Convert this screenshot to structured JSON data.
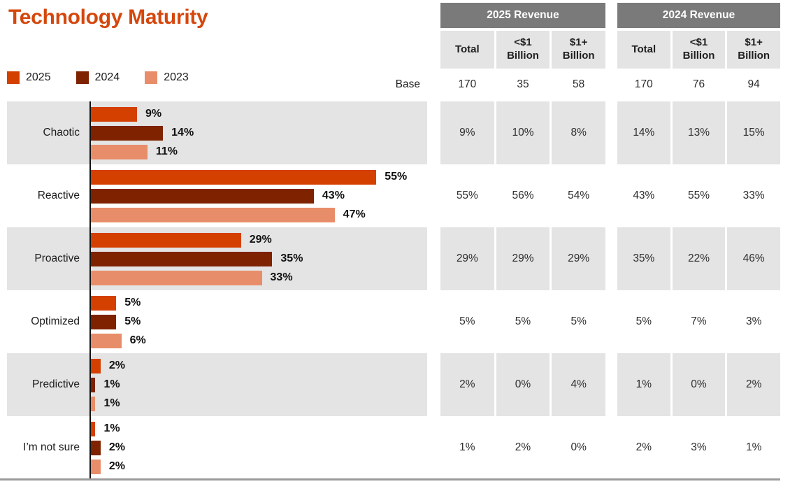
{
  "title": "Technology Maturity",
  "accent_color": "#D5470D",
  "base_label": "Base",
  "colors": {
    "band_gray": "#E4E4E4",
    "table_header_gray": "#7A7A7A",
    "bottom_line": "#9B9B9B",
    "series_2025": "#D44000",
    "series_2024": "#7E2200",
    "series_2023": "#E88D69"
  },
  "legend": [
    {
      "label": "2025",
      "color": "#D44000"
    },
    {
      "label": "2024",
      "color": "#7E2200"
    },
    {
      "label": "2023",
      "color": "#E88D69"
    }
  ],
  "chart_data": {
    "type": "bar",
    "orientation": "horizontal",
    "title": "Technology Maturity",
    "categories": [
      "Chaotic",
      "Reactive",
      "Proactive",
      "Optimized",
      "Predictive",
      "I’m not sure"
    ],
    "series": [
      {
        "name": "2025",
        "color": "#D44000",
        "values": [
          9,
          55,
          29,
          5,
          2,
          1
        ]
      },
      {
        "name": "2024",
        "color": "#7E2200",
        "values": [
          14,
          43,
          35,
          5,
          1,
          2
        ]
      },
      {
        "name": "2023",
        "color": "#E88D69",
        "values": [
          11,
          47,
          33,
          6,
          1,
          2
        ]
      }
    ],
    "value_suffix": "%",
    "xlim": [
      0,
      65
    ],
    "grid": false,
    "legend_position": "top-left",
    "row_shading": "alternating-gray-first"
  },
  "tables": [
    {
      "title": "2025 Revenue",
      "columns": [
        "Total",
        "<$1 Billion",
        "$1+ Billion"
      ],
      "base_values": [
        "170",
        "35",
        "58"
      ],
      "rows": [
        [
          "9%",
          "10%",
          "8%"
        ],
        [
          "55%",
          "56%",
          "54%"
        ],
        [
          "29%",
          "29%",
          "29%"
        ],
        [
          "5%",
          "5%",
          "5%"
        ],
        [
          "2%",
          "0%",
          "4%"
        ],
        [
          "1%",
          "2%",
          "0%"
        ]
      ]
    },
    {
      "title": "2024 Revenue",
      "columns": [
        "Total",
        "<$1 Billion",
        "$1+ Billion"
      ],
      "base_values": [
        "170",
        "76",
        "94"
      ],
      "rows": [
        [
          "14%",
          "13%",
          "15%"
        ],
        [
          "43%",
          "55%",
          "33%"
        ],
        [
          "35%",
          "22%",
          "46%"
        ],
        [
          "5%",
          "7%",
          "3%"
        ],
        [
          "1%",
          "0%",
          "2%"
        ],
        [
          "2%",
          "3%",
          "1%"
        ]
      ]
    }
  ]
}
